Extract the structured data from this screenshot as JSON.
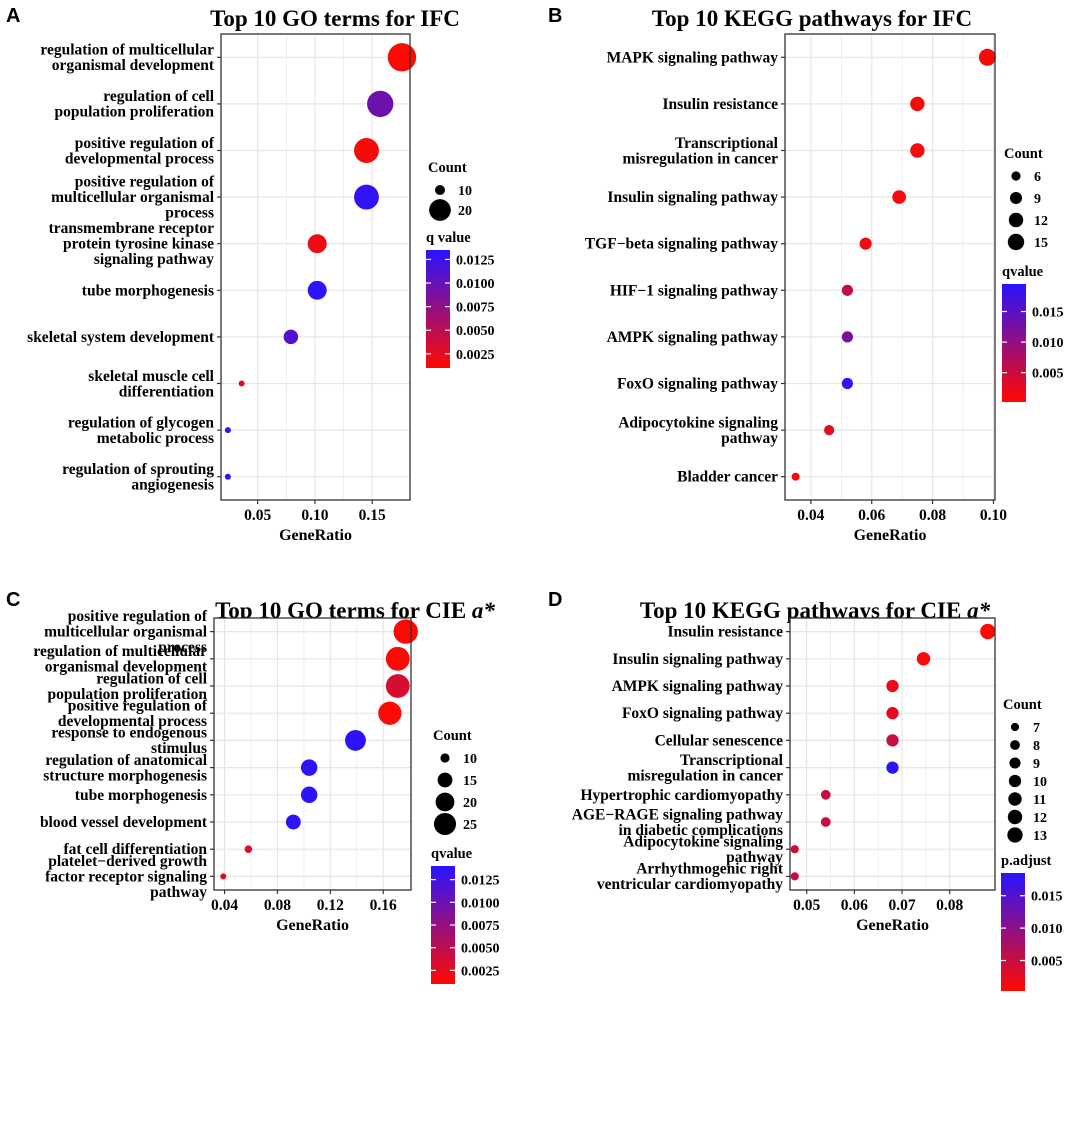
{
  "chart_data": [
    {
      "panel_label": "A",
      "type": "scatter",
      "title": "Top 10 GO terms for IFC",
      "title_italic_suffix": "",
      "xlabel": "GeneRatio",
      "xlim": [
        0.018,
        0.183
      ],
      "xticks": [
        0.05,
        0.1,
        0.15
      ],
      "xtick_labels": [
        "0.05",
        "0.10",
        "0.15"
      ],
      "size_legend_title": "Count",
      "size_legend_values": [
        10,
        20
      ],
      "size_range": [
        6,
        28
      ],
      "color_legend_title": "q value",
      "color_legend_ticks": [
        0.0125,
        0.01,
        0.0075,
        0.005,
        0.0025
      ],
      "color_legend_tick_labels": [
        "0.0125",
        "0.0100",
        "0.0075",
        "0.0050",
        "0.0025"
      ],
      "color_range": [
        0.001,
        0.0135
      ],
      "terms": [
        {
          "label": [
            "regulation of multicellular",
            "organismal development"
          ],
          "x": 0.176,
          "count": 29,
          "q": 0.0012
        },
        {
          "label": [
            "regulation of cell",
            "population proliferation"
          ],
          "x": 0.157,
          "count": 26,
          "q": 0.0095
        },
        {
          "label": [
            "positive regulation of",
            "developmental process"
          ],
          "x": 0.145,
          "count": 24,
          "q": 0.0015
        },
        {
          "label": [
            "positive regulation of",
            "multicellular organismal",
            "process"
          ],
          "x": 0.145,
          "count": 24,
          "q": 0.013
        },
        {
          "label": [
            "transmembrane receptor",
            "protein tyrosine kinase",
            "signaling pathway"
          ],
          "x": 0.102,
          "count": 17,
          "q": 0.002
        },
        {
          "label": [
            "tube morphogenesis"
          ],
          "x": 0.102,
          "count": 17,
          "q": 0.0132
        },
        {
          "label": [
            "skeletal system development"
          ],
          "x": 0.079,
          "count": 13,
          "q": 0.011
        },
        {
          "label": [
            "skeletal muscle cell",
            "differentiation"
          ],
          "x": 0.036,
          "count": 6,
          "q": 0.003
        },
        {
          "label": [
            "regulation of glycogen",
            "metabolic process"
          ],
          "x": 0.024,
          "count": 4,
          "q": 0.0133
        },
        {
          "label": [
            "regulation of sprouting",
            "angiogenesis"
          ],
          "x": 0.024,
          "count": 4,
          "q": 0.0133
        }
      ]
    },
    {
      "panel_label": "B",
      "type": "scatter",
      "title": "Top 10 KEGG pathways for IFC",
      "title_italic_suffix": "",
      "xlabel": "GeneRatio",
      "xlim": [
        0.0315,
        0.1005
      ],
      "xticks": [
        0.04,
        0.06,
        0.08,
        0.1
      ],
      "xtick_labels": [
        "0.04",
        "0.06",
        "0.08",
        "0.10"
      ],
      "size_legend_title": "Count",
      "size_legend_values": [
        6,
        9,
        12,
        15
      ],
      "size_range": [
        5,
        16
      ],
      "color_legend_title": "qvalue",
      "color_legend_ticks": [
        0.015,
        0.01,
        0.005
      ],
      "color_legend_tick_labels": [
        "0.015",
        "0.010",
        "0.005"
      ],
      "color_range": [
        0.0002,
        0.0195
      ],
      "terms": [
        {
          "label": [
            "MAPK signaling pathway"
          ],
          "x": 0.098,
          "count": 16,
          "q": 0.0008
        },
        {
          "label": [
            "Insulin resistance"
          ],
          "x": 0.075,
          "count": 12,
          "q": 0.0008
        },
        {
          "label": [
            "Transcriptional",
            "misregulation in cancer"
          ],
          "x": 0.075,
          "count": 12,
          "q": 0.001
        },
        {
          "label": [
            "Insulin signaling pathway"
          ],
          "x": 0.069,
          "count": 11,
          "q": 0.0012
        },
        {
          "label": [
            "TGF−beta signaling pathway"
          ],
          "x": 0.058,
          "count": 9,
          "q": 0.0015
        },
        {
          "label": [
            "HIF−1 signaling pathway"
          ],
          "x": 0.052,
          "count": 8,
          "q": 0.006
        },
        {
          "label": [
            "AMPK signaling pathway"
          ],
          "x": 0.052,
          "count": 8,
          "q": 0.0125
        },
        {
          "label": [
            "FoxO signaling pathway"
          ],
          "x": 0.052,
          "count": 8,
          "q": 0.0185
        },
        {
          "label": [
            "Adipocytokine signaling",
            "pathway"
          ],
          "x": 0.046,
          "count": 7,
          "q": 0.0025
        },
        {
          "label": [
            "Bladder cancer"
          ],
          "x": 0.035,
          "count": 5,
          "q": 0.0008
        }
      ]
    },
    {
      "panel_label": "C",
      "type": "scatter",
      "title": "Top 10 GO terms for CIE ",
      "title_italic_suffix": "a*",
      "xlabel": "GeneRatio",
      "xlim": [
        0.032,
        0.181
      ],
      "xticks": [
        0.04,
        0.08,
        0.12,
        0.16
      ],
      "xtick_labels": [
        "0.04",
        "0.08",
        "0.12",
        "0.16"
      ],
      "size_legend_title": "Count",
      "size_legend_values": [
        10,
        15,
        20,
        25
      ],
      "size_range": [
        5,
        29
      ],
      "color_legend_title": "qvalue",
      "color_legend_ticks": [
        0.0125,
        0.01,
        0.0075,
        0.005,
        0.0025
      ],
      "color_legend_tick_labels": [
        "0.0125",
        "0.0100",
        "0.0075",
        "0.0050",
        "0.0025"
      ],
      "color_range": [
        0.001,
        0.014
      ],
      "terms": [
        {
          "label": [
            "positive regulation of",
            "multicellular organismal",
            "process"
          ],
          "x": 0.177,
          "count": 29,
          "q": 0.0012
        },
        {
          "label": [
            "regulation of multicellular",
            "organismal development"
          ],
          "x": 0.171,
          "count": 28,
          "q": 0.0012
        },
        {
          "label": [
            "regulation of cell",
            "population proliferation"
          ],
          "x": 0.171,
          "count": 28,
          "q": 0.0035
        },
        {
          "label": [
            "positive regulation of",
            "developmental process"
          ],
          "x": 0.165,
          "count": 27,
          "q": 0.0012
        },
        {
          "label": [
            "response to endogenous",
            "stimulus"
          ],
          "x": 0.139,
          "count": 23,
          "q": 0.0138
        },
        {
          "label": [
            "regulation of anatomical",
            "structure morphogenesis"
          ],
          "x": 0.104,
          "count": 17,
          "q": 0.0138
        },
        {
          "label": [
            "tube morphogenesis"
          ],
          "x": 0.104,
          "count": 17,
          "q": 0.0138
        },
        {
          "label": [
            "blood vessel development"
          ],
          "x": 0.092,
          "count": 15,
          "q": 0.0138
        },
        {
          "label": [
            "fat cell differentiation"
          ],
          "x": 0.058,
          "count": 9,
          "q": 0.003
        },
        {
          "label": [
            "platelet−derived growth",
            "factor receptor signaling",
            "pathway"
          ],
          "x": 0.039,
          "count": 6,
          "q": 0.003
        }
      ]
    },
    {
      "panel_label": "D",
      "type": "scatter",
      "title": "Top 10 KEGG pathways for CIE ",
      "title_italic_suffix": "a*",
      "xlabel": "GeneRatio",
      "xlim": [
        0.0465,
        0.0895
      ],
      "xticks": [
        0.05,
        0.06,
        0.07,
        0.08
      ],
      "xtick_labels": [
        "0.05",
        "0.06",
        "0.07",
        "0.08"
      ],
      "size_legend_title": "Count",
      "size_legend_values": [
        7,
        8,
        9,
        10,
        11,
        12,
        13
      ],
      "size_range": [
        4,
        14
      ],
      "color_legend_title": "p.adjust",
      "color_legend_ticks": [
        0.015,
        0.01,
        0.005
      ],
      "color_legend_tick_labels": [
        "0.015",
        "0.010",
        "0.005"
      ],
      "color_range": [
        0.0003,
        0.0185
      ],
      "terms": [
        {
          "label": [
            "Insulin resistance"
          ],
          "x": 0.088,
          "count": 13,
          "q": 0.0005
        },
        {
          "label": [
            "Insulin signaling pathway"
          ],
          "x": 0.0745,
          "count": 11,
          "q": 0.001
        },
        {
          "label": [
            "AMPK signaling pathway"
          ],
          "x": 0.068,
          "count": 10,
          "q": 0.002
        },
        {
          "label": [
            "FoxO signaling pathway"
          ],
          "x": 0.068,
          "count": 10,
          "q": 0.0025
        },
        {
          "label": [
            "Cellular senescence"
          ],
          "x": 0.068,
          "count": 10,
          "q": 0.005
        },
        {
          "label": [
            "Transcriptional",
            "misregulation in cancer"
          ],
          "x": 0.068,
          "count": 10,
          "q": 0.018
        },
        {
          "label": [
            "Hypertrophic cardiomyopathy"
          ],
          "x": 0.054,
          "count": 8,
          "q": 0.005
        },
        {
          "label": [
            "AGE−RAGE signaling pathway",
            "in diabetic complications"
          ],
          "x": 0.054,
          "count": 8,
          "q": 0.005
        },
        {
          "label": [
            "Adipocytokine signaling",
            "pathway"
          ],
          "x": 0.0475,
          "count": 7,
          "q": 0.0045
        },
        {
          "label": [
            "Arrhythmogenic right",
            "ventricular cardiomyopathy"
          ],
          "x": 0.0475,
          "count": 7,
          "q": 0.005
        }
      ]
    }
  ]
}
